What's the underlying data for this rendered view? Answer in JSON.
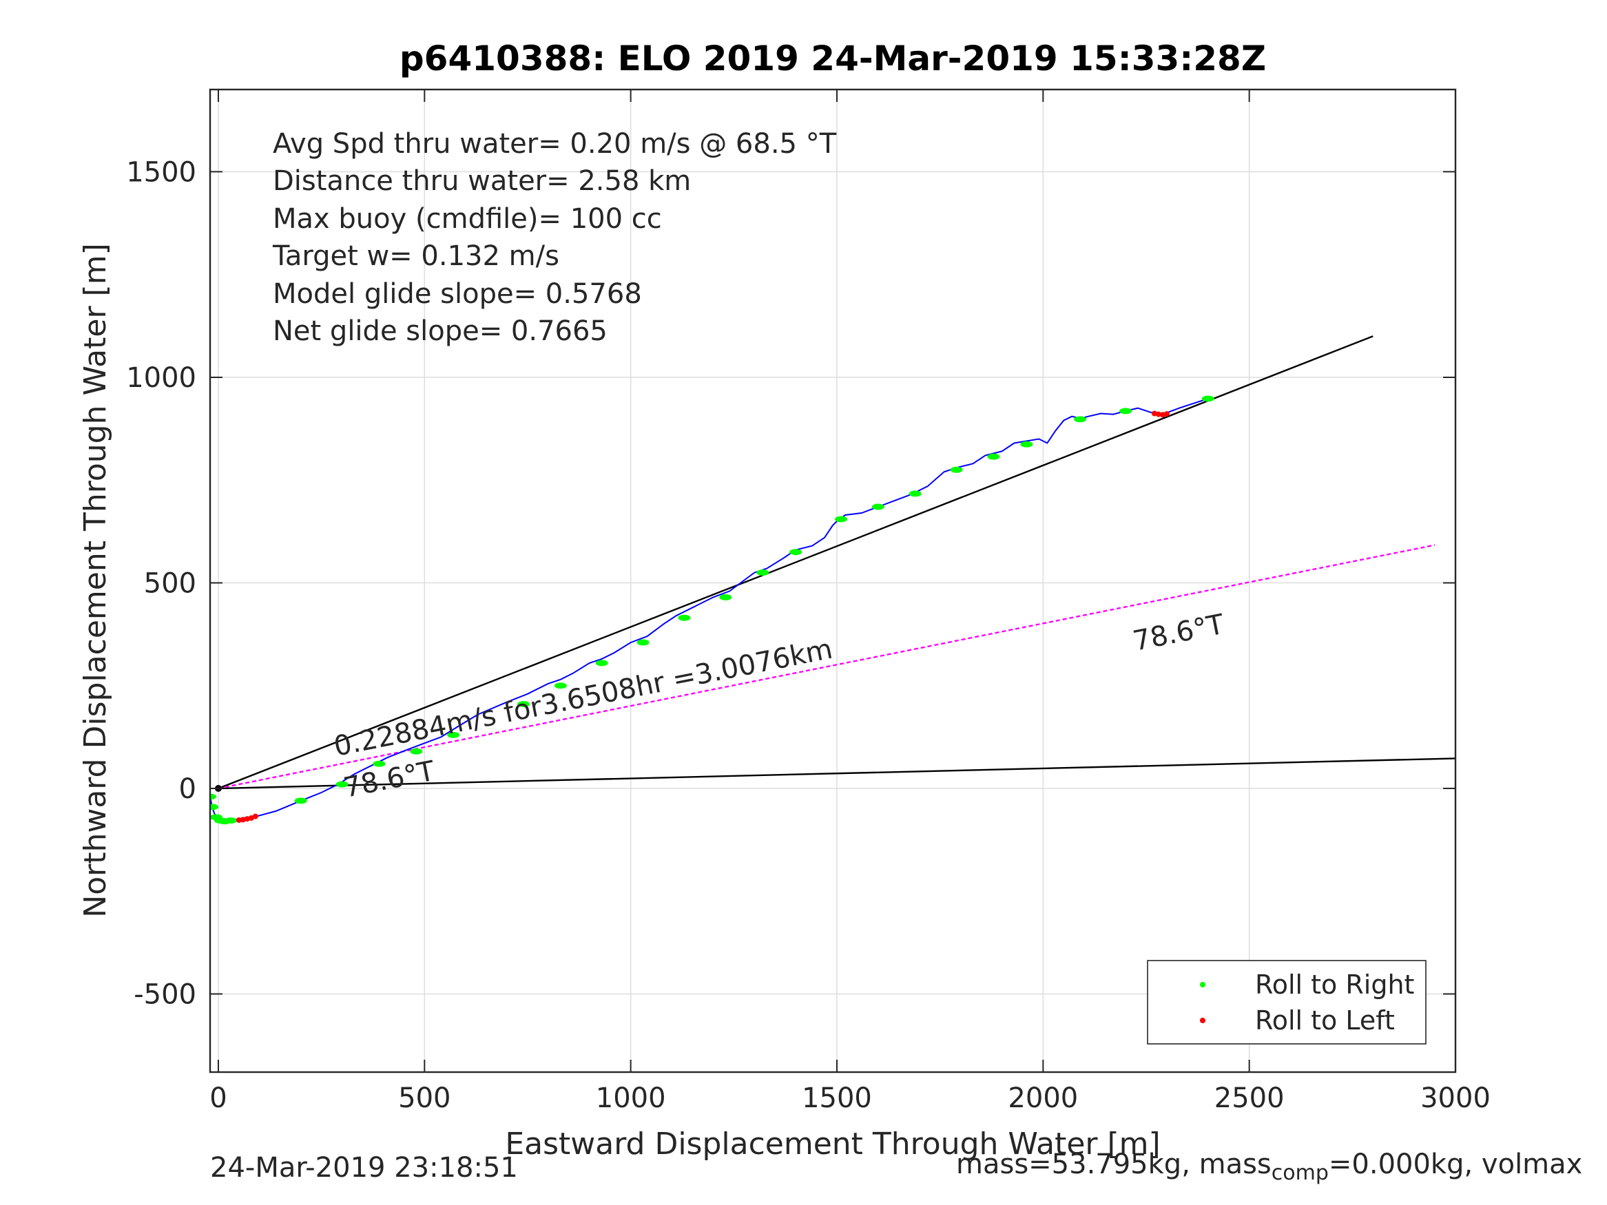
{
  "chart_data": {
    "type": "line",
    "title": "p6410388: ELO 2019 24-Mar-2019 15:33:28Z",
    "xlabel": "Eastward Displacement Through Water [m]",
    "ylabel": "Northward Displacement Through Water [m]",
    "xlim": [
      -20,
      3000
    ],
    "ylim": [
      -690,
      1700
    ],
    "xticks": [
      0,
      500,
      1000,
      1500,
      2000,
      2500,
      3000
    ],
    "yticks": [
      -500,
      0,
      500,
      1000,
      1500
    ],
    "xtick_labels": [
      "0",
      "500",
      "1000",
      "1500",
      "2000",
      "2500",
      "3000"
    ],
    "ytick_labels": [
      "-500",
      "0",
      "500",
      "1000",
      "1500"
    ],
    "grid": true,
    "legend_placement": "bottom-right",
    "stats_lines": [
      "Avg Spd thru water=  0.20 m/s @  68.5 °T",
      "Distance thru water=  2.58 km",
      "Max buoy (cmdfile)= 100 cc",
      "Target w= 0.132 m/s",
      "Model glide slope= 0.5768",
      "Net glide slope= 0.7665"
    ],
    "annotations": {
      "current_label": "0.22884m/s for3.6508hr =3.0076km",
      "heading_label_near": "78.6°T",
      "heading_label_far": "78.6°T"
    },
    "colors": {
      "track": "#0000ff",
      "heading_line": "#ff00ff",
      "roll_right": "#00ff00",
      "roll_left": "#ff0000",
      "reference": "#000000"
    },
    "series": [
      {
        "name": "track",
        "x": [
          -20,
          -18,
          -15,
          -10,
          -5,
          0,
          10,
          20,
          30,
          45,
          60,
          80,
          100,
          140,
          200,
          250,
          290,
          330,
          370,
          410,
          460,
          500,
          540,
          580,
          630,
          700,
          750,
          800,
          830,
          860,
          900,
          930,
          960,
          1000,
          1040,
          1080,
          1110,
          1150,
          1200,
          1240,
          1280,
          1300,
          1330,
          1370,
          1400,
          1440,
          1470,
          1490,
          1500,
          1520,
          1560,
          1600,
          1640,
          1680,
          1720,
          1760,
          1790,
          1830,
          1860,
          1900,
          1930,
          1960,
          1990,
          2010,
          2030,
          2050,
          2070,
          2090,
          2110,
          2140,
          2170,
          2200,
          2230,
          2260,
          2290,
          2330,
          2360,
          2400
        ],
        "y": [
          -20,
          -30,
          -45,
          -60,
          -70,
          -75,
          -78,
          -80,
          -78,
          -75,
          -72,
          -70,
          -66,
          -55,
          -30,
          -10,
          10,
          35,
          55,
          75,
          95,
          110,
          125,
          150,
          180,
          210,
          230,
          255,
          265,
          280,
          305,
          315,
          330,
          355,
          370,
          400,
          420,
          440,
          465,
          480,
          510,
          525,
          535,
          560,
          580,
          590,
          610,
          640,
          650,
          665,
          670,
          685,
          700,
          715,
          735,
          770,
          780,
          790,
          810,
          820,
          840,
          845,
          850,
          840,
          870,
          895,
          905,
          900,
          905,
          912,
          910,
          918,
          925,
          915,
          910,
          925,
          935,
          948
        ]
      },
      {
        "name": "Roll to Right",
        "x": [
          -20,
          -15,
          -5,
          5,
          15,
          30,
          200,
          300,
          390,
          480,
          570,
          740,
          830,
          930,
          1030,
          1130,
          1230,
          1320,
          1400,
          1510,
          1600,
          1690,
          1790,
          1880,
          1960,
          2090,
          2200,
          2400
        ],
        "y": [
          -20,
          -45,
          -70,
          -78,
          -80,
          -78,
          -30,
          10,
          60,
          90,
          130,
          205,
          250,
          305,
          355,
          415,
          465,
          525,
          575,
          655,
          685,
          717,
          775,
          807,
          837,
          898,
          918,
          948
        ]
      },
      {
        "name": "Roll to Left",
        "x": [
          50,
          60,
          70,
          80,
          90,
          2270,
          2280,
          2290,
          2300
        ],
        "y": [
          -77,
          -76,
          -74,
          -72,
          -68,
          912,
          910,
          909,
          911
        ]
      },
      {
        "name": "heading_line",
        "x": [
          0,
          2950
        ],
        "y": [
          0,
          592
        ]
      },
      {
        "name": "glide_reference_line",
        "x": [
          0,
          2800
        ],
        "y": [
          0,
          1100
        ]
      },
      {
        "name": "bottom_reference_line",
        "x": [
          0,
          3000
        ],
        "y": [
          0,
          73
        ]
      }
    ]
  },
  "legend": {
    "items": [
      {
        "label": "Roll to Right",
        "color": "#00ff00"
      },
      {
        "label": "Roll to Left",
        "color": "#ff0000"
      }
    ]
  },
  "footer": {
    "timestamp": "24-Mar-2019 23:18:51",
    "mass_prefix": "mass=53.795kg, mass",
    "mass_sub": "comp",
    "mass_suffix": "=0.000kg, volmax"
  }
}
